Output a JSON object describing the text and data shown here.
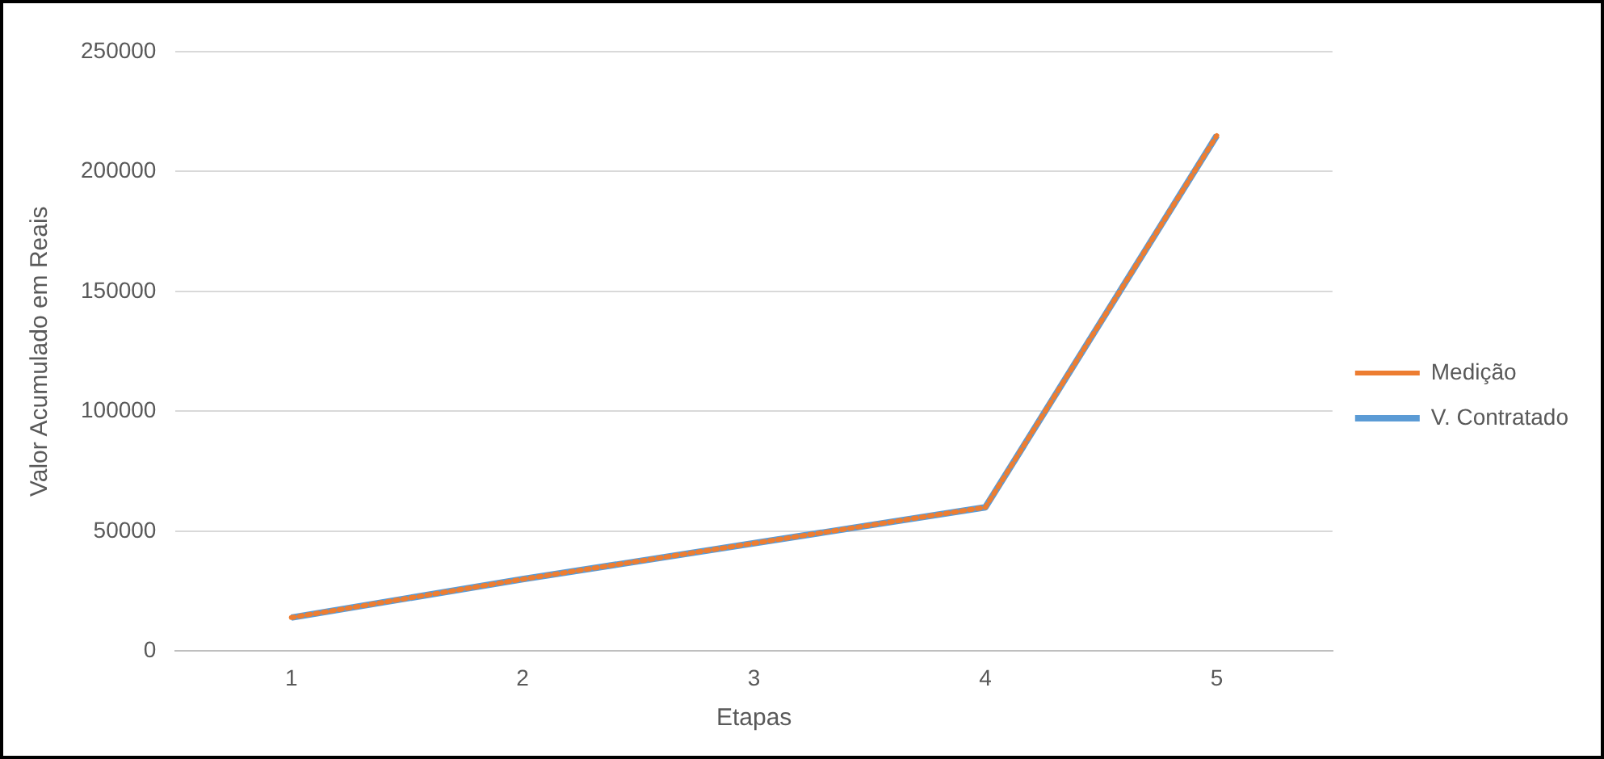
{
  "chart_data": {
    "type": "line",
    "xlabel": "Etapas",
    "ylabel": "Valor Acumulado em Reais",
    "categories": [
      "1",
      "2",
      "3",
      "4",
      "5"
    ],
    "series": [
      {
        "name": "V. Contratado",
        "color": "#5b9bd5",
        "values": [
          14000,
          30000,
          45000,
          60000,
          215000
        ],
        "line_style": "solid"
      },
      {
        "name": "Medição",
        "color": "#ed7d31",
        "values": [
          14000,
          30000,
          45000,
          60000,
          215000
        ],
        "line_style": "dotted"
      }
    ],
    "ylim": [
      0,
      250000
    ],
    "yticks": [
      0,
      50000,
      100000,
      150000,
      200000,
      250000
    ],
    "grid": "y",
    "legend": "right",
    "marker": "none"
  }
}
